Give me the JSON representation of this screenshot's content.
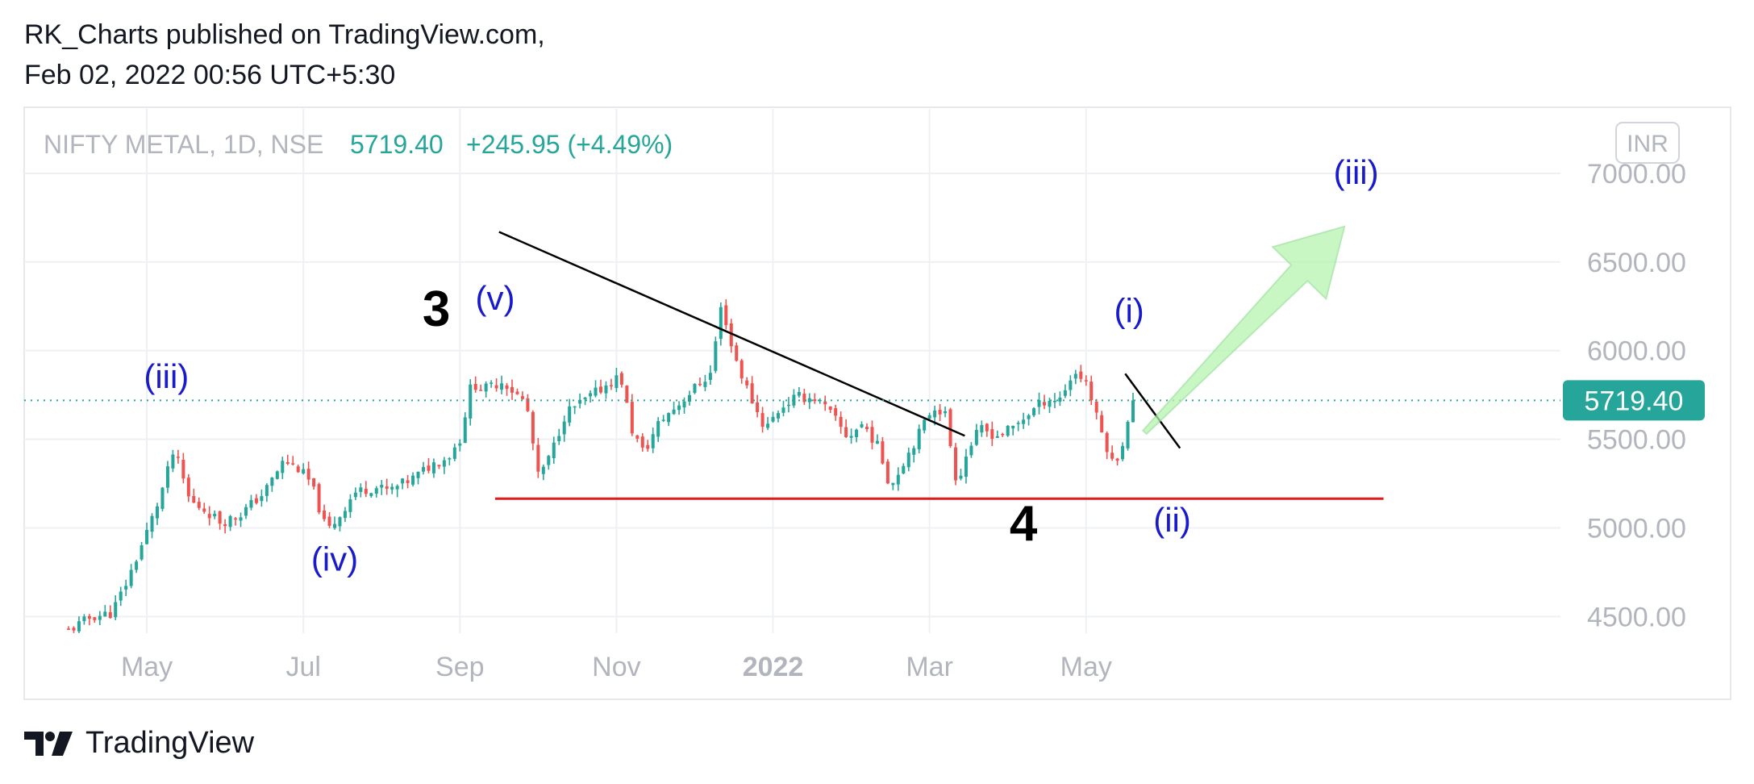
{
  "header": {
    "published_by": "RK_Charts published on TradingView.com,",
    "published_at": "Feb 02, 2022 00:56 UTC+5:30"
  },
  "legend": {
    "symbol": "NIFTY METAL, 1D, NSE",
    "last_price": "5719.40",
    "change": "+245.95 (+4.49%)"
  },
  "currency_badge": "INR",
  "price_label": "5719.40",
  "brand": {
    "name": "TradingView"
  },
  "colors": {
    "up": "#26a69a",
    "down": "#ef5350",
    "axis_text": "#b2b5be",
    "wave_label": "#1a1acd",
    "support": "#e01b1b",
    "grid": "#eef0f3",
    "arrow": "#b6f5b0"
  },
  "chart_data": {
    "type": "candlestick",
    "title": "NIFTY METAL, 1D, NSE",
    "x_ticks": [
      "May",
      "Jul",
      "Sep",
      "Nov",
      "2022",
      "Mar",
      "May"
    ],
    "y_ticks": [
      "4500.00",
      "5000.00",
      "5500.00",
      "6000.00",
      "6500.00",
      "7000.00"
    ],
    "ylim": [
      4370,
      7250
    ],
    "last_price": 5719.4,
    "support_level": 5165,
    "trendline": [
      [
        5.5,
        6670
      ],
      [
        11.45,
        5520
      ]
    ],
    "minor_trendline": [
      [
        13.5,
        5870
      ],
      [
        14.2,
        5450
      ]
    ],
    "projection_target": 6700,
    "wave_labels": [
      {
        "text": "(iii)",
        "x": 1.25,
        "y": 5790,
        "style": "minor"
      },
      {
        "text": "(iv)",
        "x": 3.4,
        "y": 4760,
        "style": "minor"
      },
      {
        "text": "3",
        "x": 4.7,
        "y": 6140,
        "style": "major"
      },
      {
        "text": "(v)",
        "x": 5.45,
        "y": 6230,
        "style": "minor"
      },
      {
        "text": "(i)",
        "x": 13.55,
        "y": 6160,
        "style": "minor"
      },
      {
        "text": "(ii)",
        "x": 14.1,
        "y": 4980,
        "style": "minor"
      },
      {
        "text": "4",
        "x": 12.2,
        "y": 4930,
        "style": "major"
      },
      {
        "text": "(iii)",
        "x": 16.45,
        "y": 6940,
        "style": "minor"
      }
    ],
    "price_path": [
      [
        0.0,
        4420
      ],
      [
        0.3,
        4500
      ],
      [
        0.55,
        4520
      ],
      [
        0.75,
        4700
      ],
      [
        0.95,
        4920
      ],
      [
        1.15,
        5150
      ],
      [
        1.35,
        5440
      ],
      [
        1.55,
        5150
      ],
      [
        1.75,
        5100
      ],
      [
        1.95,
        5030
      ],
      [
        2.2,
        5080
      ],
      [
        2.5,
        5200
      ],
      [
        2.75,
        5380
      ],
      [
        2.95,
        5330
      ],
      [
        3.1,
        5250
      ],
      [
        3.3,
        4980
      ],
      [
        3.45,
        5060
      ],
      [
        3.65,
        5200
      ],
      [
        3.9,
        5230
      ],
      [
        4.1,
        5210
      ],
      [
        4.4,
        5280
      ],
      [
        4.65,
        5360
      ],
      [
        4.85,
        5400
      ],
      [
        5.0,
        5500
      ],
      [
        5.15,
        5820
      ],
      [
        5.3,
        5780
      ],
      [
        5.55,
        5830
      ],
      [
        5.7,
        5760
      ],
      [
        5.85,
        5700
      ],
      [
        6.0,
        5290
      ],
      [
        6.15,
        5400
      ],
      [
        6.35,
        5650
      ],
      [
        6.6,
        5720
      ],
      [
        6.85,
        5800
      ],
      [
        7.05,
        5860
      ],
      [
        7.2,
        5550
      ],
      [
        7.35,
        5420
      ],
      [
        7.55,
        5600
      ],
      [
        7.8,
        5700
      ],
      [
        8.0,
        5790
      ],
      [
        8.2,
        5870
      ],
      [
        8.35,
        6280
      ],
      [
        8.45,
        6050
      ],
      [
        8.6,
        5860
      ],
      [
        8.75,
        5700
      ],
      [
        8.9,
        5560
      ],
      [
        9.1,
        5680
      ],
      [
        9.3,
        5740
      ],
      [
        9.55,
        5730
      ],
      [
        9.75,
        5640
      ],
      [
        9.95,
        5510
      ],
      [
        10.15,
        5590
      ],
      [
        10.35,
        5450
      ],
      [
        10.5,
        5230
      ],
      [
        10.65,
        5360
      ],
      [
        10.85,
        5520
      ],
      [
        11.05,
        5690
      ],
      [
        11.2,
        5640
      ],
      [
        11.35,
        5250
      ],
      [
        11.5,
        5450
      ],
      [
        11.65,
        5560
      ],
      [
        11.85,
        5520
      ],
      [
        12.05,
        5560
      ],
      [
        12.25,
        5640
      ],
      [
        12.5,
        5730
      ],
      [
        12.65,
        5720
      ],
      [
        12.85,
        5880
      ],
      [
        13.0,
        5830
      ],
      [
        13.15,
        5600
      ],
      [
        13.35,
        5350
      ],
      [
        13.5,
        5520
      ],
      [
        13.6,
        5720
      ]
    ]
  }
}
